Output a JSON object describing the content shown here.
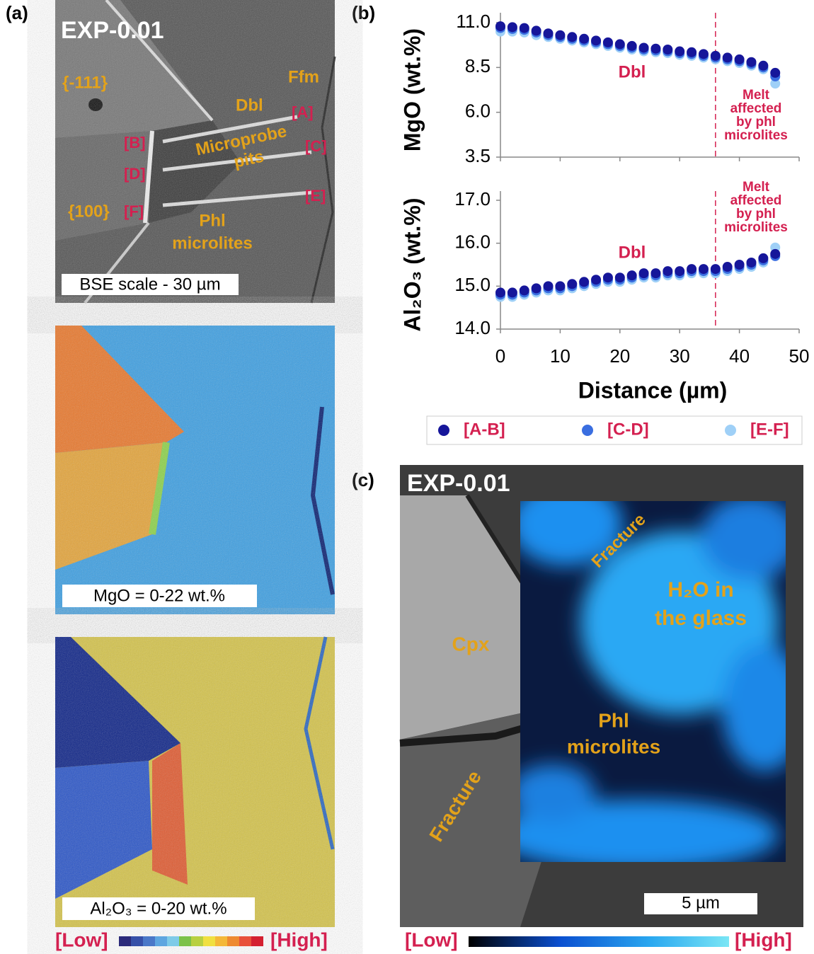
{
  "panel_labels": [
    "(a)",
    "(b)",
    "(c)"
  ],
  "panel_a": {
    "title": "EXP-0.01",
    "face_111": "{-111}",
    "face_100": "{100}",
    "ffm": "Ffm",
    "dbl": "Dbl",
    "microprobe_pits": [
      "Microprobe",
      "pits"
    ],
    "phl_microlites": [
      "Phl",
      "microlites"
    ],
    "points": [
      "[A]",
      "[B]",
      "[C]",
      "[D]",
      "[E]",
      "[F]"
    ],
    "scale": "BSE scale - 30 µm",
    "map_mgo": "MgO = 0-22 wt.%",
    "map_al2o3": "Al₂O₃ = 0-20 wt.%",
    "colorbar": {
      "low": "[Low]",
      "high": "[High]"
    }
  },
  "chart_data": [
    {
      "type": "scatter",
      "y_label": "MgO (wt.%)",
      "annotation": "Dbl",
      "vline": 36,
      "region_label": [
        "Melt",
        "affected",
        "by phl",
        "microlites"
      ],
      "x": [
        0,
        2,
        4,
        6,
        8,
        10,
        12,
        14,
        16,
        18,
        20,
        22,
        24,
        26,
        28,
        30,
        32,
        34,
        36,
        38,
        40,
        42,
        44,
        46
      ],
      "xlim": [
        0,
        50
      ],
      "xticks": [
        0,
        10,
        20,
        30,
        40,
        50
      ],
      "ylim": [
        3.5,
        11.0
      ],
      "yticks": [
        {
          "value": 11,
          "label": "11.0"
        },
        8.5,
        {
          "value": 6,
          "label": "6.0"
        },
        3.5
      ],
      "series": [
        {
          "name": "[A-B]",
          "color": "#16169a",
          "values": [
            10.8,
            10.75,
            10.7,
            10.55,
            10.4,
            10.3,
            10.2,
            10.1,
            10.0,
            9.9,
            9.8,
            9.7,
            9.6,
            9.55,
            9.5,
            9.4,
            9.35,
            9.25,
            9.15,
            9.05,
            8.95,
            8.8,
            8.6,
            8.2
          ]
        },
        {
          "name": "[C-D]",
          "color": "#3a6ee0",
          "values": [
            10.7,
            10.65,
            10.6,
            10.45,
            10.3,
            10.2,
            10.1,
            10.0,
            9.9,
            9.8,
            9.7,
            9.6,
            9.5,
            9.45,
            9.4,
            9.3,
            9.25,
            9.15,
            9.05,
            8.95,
            8.85,
            8.7,
            8.5,
            8.0
          ]
        },
        {
          "name": "[E-F]",
          "color": "#9fd0f7",
          "values": [
            10.5,
            10.5,
            10.45,
            10.3,
            10.2,
            10.1,
            10.0,
            9.9,
            9.8,
            9.7,
            9.6,
            9.5,
            9.4,
            9.35,
            9.3,
            9.2,
            9.15,
            9.05,
            8.95,
            8.85,
            8.75,
            8.6,
            8.4,
            7.6
          ]
        }
      ]
    },
    {
      "type": "scatter",
      "y_label": "Al₂O₃ (wt.%)",
      "x_label": "Distance (µm)",
      "annotation": "Dbl",
      "vline": 36,
      "region_label": [
        "Melt",
        "affected",
        "by phl",
        "microlites"
      ],
      "x": [
        0,
        2,
        4,
        6,
        8,
        10,
        12,
        14,
        16,
        18,
        20,
        22,
        24,
        26,
        28,
        30,
        32,
        34,
        36,
        38,
        40,
        42,
        44,
        46
      ],
      "xlim": [
        0,
        50
      ],
      "xticks": [
        0,
        10,
        20,
        30,
        40,
        50
      ],
      "ylim": [
        14.0,
        17.0
      ],
      "yticks": [
        {
          "value": 17,
          "label": "17.0"
        },
        {
          "value": 16,
          "label": "16.0"
        },
        {
          "value": 15,
          "label": "15.0"
        },
        {
          "value": 14,
          "label": "14.0"
        }
      ],
      "series": [
        {
          "name": "[A-B]",
          "color": "#16169a",
          "values": [
            14.85,
            14.85,
            14.9,
            14.95,
            15.0,
            15.0,
            15.05,
            15.1,
            15.15,
            15.2,
            15.2,
            15.25,
            15.3,
            15.3,
            15.35,
            15.35,
            15.4,
            15.4,
            15.4,
            15.45,
            15.5,
            15.55,
            15.65,
            15.75
          ]
        },
        {
          "name": "[C-D]",
          "color": "#3a6ee0",
          "values": [
            14.8,
            14.8,
            14.85,
            14.9,
            14.95,
            14.95,
            15.0,
            15.05,
            15.1,
            15.15,
            15.15,
            15.2,
            15.25,
            15.25,
            15.3,
            15.3,
            15.35,
            15.35,
            15.35,
            15.4,
            15.45,
            15.5,
            15.6,
            15.7
          ]
        },
        {
          "name": "[E-F]",
          "color": "#9fd0f7",
          "values": [
            14.75,
            14.75,
            14.8,
            14.85,
            14.9,
            14.9,
            14.95,
            15.0,
            15.05,
            15.1,
            15.1,
            15.15,
            15.2,
            15.2,
            15.25,
            15.25,
            15.3,
            15.3,
            15.3,
            15.35,
            15.4,
            15.45,
            15.55,
            15.9
          ]
        }
      ]
    }
  ],
  "panel_c": {
    "title": "EXP-0.01",
    "fracture_top": "Fracture",
    "fracture_bottom": "Fracture",
    "h2o": [
      "H₂O in",
      "the glass"
    ],
    "cpx": "Cpx",
    "phl_microlites": [
      "Phl",
      "microlites"
    ],
    "scale": "5 µm",
    "colorbar": {
      "low": "[Low]",
      "high": "[High]"
    }
  }
}
